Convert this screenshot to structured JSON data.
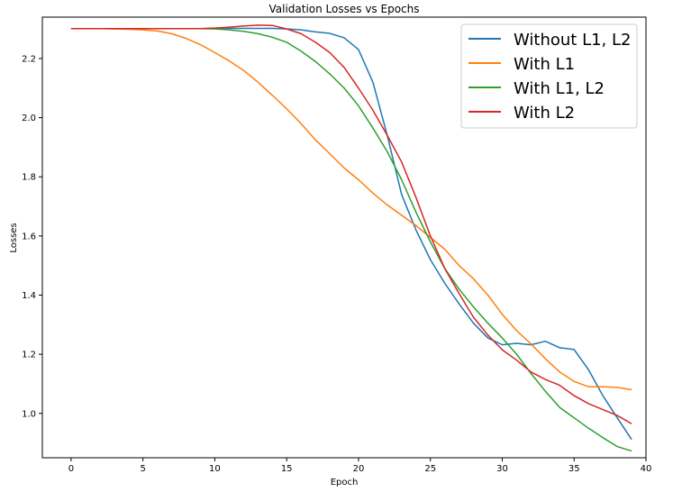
{
  "chart_data": {
    "type": "line",
    "title": "Validation Losses vs Epochs",
    "xlabel": "Epoch",
    "ylabel": "Losses",
    "xlim": [
      -2,
      40
    ],
    "ylim": [
      0.85,
      2.34
    ],
    "xticks": [
      0,
      5,
      10,
      15,
      20,
      25,
      30,
      35,
      40
    ],
    "yticks": [
      1.0,
      1.2,
      1.4,
      1.6,
      1.8,
      2.0,
      2.2
    ],
    "ytick_labels": [
      "1.0",
      "1.2",
      "1.4",
      "1.6",
      "1.8",
      "2.0",
      "2.2"
    ],
    "grid": false,
    "legend_position": "top-right",
    "x": [
      0,
      1,
      2,
      3,
      4,
      5,
      6,
      7,
      8,
      9,
      10,
      11,
      12,
      13,
      14,
      15,
      16,
      17,
      18,
      19,
      20,
      21,
      22,
      23,
      24,
      25,
      26,
      27,
      28,
      29,
      30,
      31,
      32,
      33,
      34,
      35,
      36,
      37,
      38,
      39
    ],
    "series": [
      {
        "name": "Without L1, L2",
        "color": "#1f77b4",
        "values": [
          2.301,
          2.301,
          2.301,
          2.301,
          2.301,
          2.301,
          2.301,
          2.301,
          2.301,
          2.301,
          2.302,
          2.302,
          2.302,
          2.302,
          2.302,
          2.3,
          2.297,
          2.29,
          2.285,
          2.27,
          2.23,
          2.12,
          1.94,
          1.74,
          1.62,
          1.52,
          1.44,
          1.37,
          1.305,
          1.255,
          1.232,
          1.237,
          1.232,
          1.244,
          1.222,
          1.216,
          1.148,
          1.06,
          0.985,
          0.912
        ]
      },
      {
        "name": "With L1",
        "color": "#ff7f0e",
        "values": [
          2.301,
          2.301,
          2.301,
          2.3,
          2.299,
          2.297,
          2.293,
          2.284,
          2.268,
          2.247,
          2.22,
          2.192,
          2.16,
          2.12,
          2.076,
          2.03,
          1.98,
          1.925,
          1.878,
          1.83,
          1.79,
          1.745,
          1.705,
          1.67,
          1.635,
          1.595,
          1.555,
          1.5,
          1.455,
          1.4,
          1.335,
          1.28,
          1.235,
          1.185,
          1.14,
          1.108,
          1.09,
          1.09,
          1.088,
          1.08
        ]
      },
      {
        "name": "With L1, L2",
        "color": "#2ca02c",
        "values": [
          2.301,
          2.301,
          2.301,
          2.301,
          2.301,
          2.301,
          2.301,
          2.301,
          2.301,
          2.301,
          2.3,
          2.297,
          2.292,
          2.284,
          2.272,
          2.255,
          2.225,
          2.19,
          2.148,
          2.1,
          2.04,
          1.965,
          1.885,
          1.79,
          1.68,
          1.58,
          1.49,
          1.42,
          1.36,
          1.305,
          1.255,
          1.2,
          1.135,
          1.075,
          1.02,
          0.985,
          0.95,
          0.918,
          0.888,
          0.873
        ]
      },
      {
        "name": "With L2",
        "color": "#d62728",
        "values": [
          2.301,
          2.301,
          2.301,
          2.301,
          2.301,
          2.301,
          2.301,
          2.301,
          2.301,
          2.301,
          2.303,
          2.306,
          2.31,
          2.313,
          2.312,
          2.3,
          2.284,
          2.255,
          2.22,
          2.17,
          2.1,
          2.025,
          1.94,
          1.85,
          1.73,
          1.6,
          1.49,
          1.405,
          1.325,
          1.265,
          1.215,
          1.18,
          1.14,
          1.115,
          1.095,
          1.06,
          1.033,
          1.013,
          0.993,
          0.965
        ]
      }
    ]
  }
}
